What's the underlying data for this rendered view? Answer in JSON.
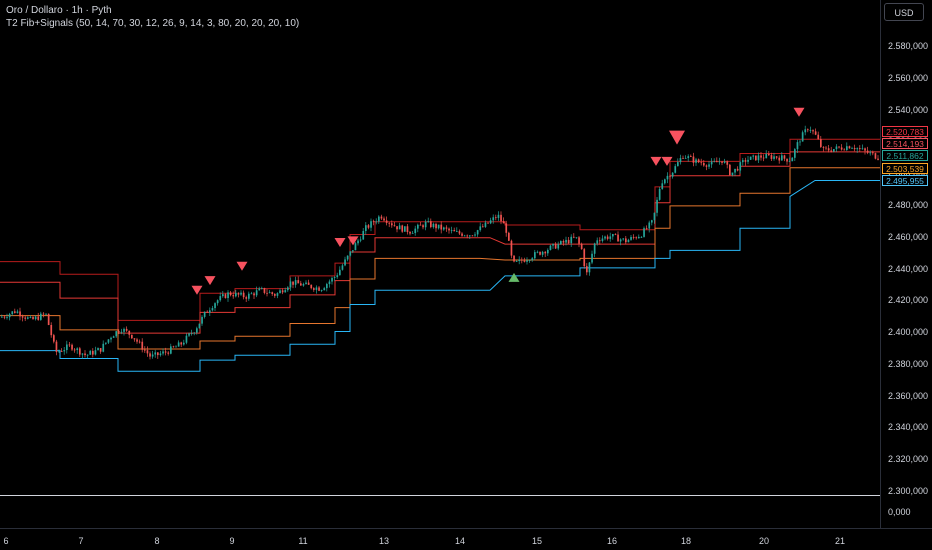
{
  "header": {
    "title": "Oro / Dollaro · 1h · Pyth",
    "indicator": "T2 Fib+Signals (50, 14, 70, 30, 12, 26, 9, 14, 3, 80, 20, 20, 20, 10)"
  },
  "currency_button": "USD",
  "chart_data": {
    "type": "line",
    "title": "",
    "xlabel": "",
    "ylabel": "",
    "x_ticks": [
      "6",
      "7",
      "8",
      "9",
      "11",
      "13",
      "14",
      "15",
      "16",
      "18",
      "20",
      "21"
    ],
    "y_ticks": [
      "2.580,000",
      "2.560,000",
      "2.540,000",
      "2.520,000",
      "2.500,000",
      "2.480,000",
      "2.460,000",
      "2.440,000",
      "2.420,000",
      "2.400,000",
      "2.380,000",
      "2.360,000",
      "2.340,000",
      "2.320,000",
      "2.300,000"
    ],
    "volume_tick": "0,000",
    "ylim": [
      2290,
      2595
    ],
    "price_labels": [
      {
        "text": "2.520,783",
        "value": 2520.78,
        "color": "#f23645"
      },
      {
        "text": "2.514,193",
        "value": 2514.19,
        "color": "#f7525f"
      },
      {
        "text": "2.511,862",
        "value": 2511.86,
        "color": "#26a69a"
      },
      {
        "text": "2.503,539",
        "value": 2503.54,
        "color": "#ffa726"
      },
      {
        "text": "2.495,955",
        "value": 2495.96,
        "color": "#4fc3f7"
      }
    ],
    "series": [
      {
        "color": "#b71c1c",
        "points": [
          [
            0,
            2445
          ],
          [
            60,
            2445
          ],
          [
            60,
            2437
          ],
          [
            118,
            2437
          ],
          [
            118,
            2408
          ],
          [
            200,
            2408
          ],
          [
            200,
            2425
          ],
          [
            235,
            2425
          ],
          [
            235,
            2428
          ],
          [
            290,
            2428
          ],
          [
            290,
            2436
          ],
          [
            335,
            2436
          ],
          [
            335,
            2444
          ],
          [
            350,
            2444
          ],
          [
            350,
            2462
          ],
          [
            375,
            2462
          ],
          [
            375,
            2470
          ],
          [
            505,
            2470
          ],
          [
            505,
            2468
          ],
          [
            580,
            2468
          ],
          [
            580,
            2465
          ],
          [
            655,
            2465
          ],
          [
            655,
            2492
          ],
          [
            670,
            2492
          ],
          [
            670,
            2508
          ],
          [
            740,
            2508
          ],
          [
            740,
            2513
          ],
          [
            790,
            2513
          ],
          [
            790,
            2522
          ],
          [
            880,
            2522
          ]
        ]
      },
      {
        "color": "#e53935",
        "points": [
          [
            0,
            2432
          ],
          [
            60,
            2432
          ],
          [
            60,
            2422
          ],
          [
            118,
            2422
          ],
          [
            118,
            2400
          ],
          [
            200,
            2400
          ],
          [
            200,
            2413
          ],
          [
            235,
            2413
          ],
          [
            235,
            2416
          ],
          [
            290,
            2416
          ],
          [
            290,
            2424
          ],
          [
            335,
            2424
          ],
          [
            335,
            2433
          ],
          [
            350,
            2433
          ],
          [
            350,
            2451
          ],
          [
            375,
            2451
          ],
          [
            375,
            2460
          ],
          [
            490,
            2460
          ],
          [
            505,
            2456
          ],
          [
            580,
            2456
          ],
          [
            580,
            2456
          ],
          [
            655,
            2456
          ],
          [
            655,
            2482
          ],
          [
            670,
            2482
          ],
          [
            670,
            2499
          ],
          [
            740,
            2499
          ],
          [
            740,
            2505
          ],
          [
            790,
            2505
          ],
          [
            790,
            2514
          ],
          [
            880,
            2514
          ]
        ]
      },
      {
        "color": "#e6762e",
        "points": [
          [
            0,
            2411
          ],
          [
            60,
            2411
          ],
          [
            60,
            2402
          ],
          [
            118,
            2402
          ],
          [
            118,
            2390
          ],
          [
            200,
            2390
          ],
          [
            200,
            2395
          ],
          [
            235,
            2395
          ],
          [
            235,
            2398
          ],
          [
            290,
            2398
          ],
          [
            290,
            2406
          ],
          [
            335,
            2406
          ],
          [
            335,
            2416
          ],
          [
            350,
            2416
          ],
          [
            350,
            2434
          ],
          [
            375,
            2434
          ],
          [
            375,
            2447
          ],
          [
            480,
            2447
          ],
          [
            505,
            2446
          ],
          [
            580,
            2446
          ],
          [
            580,
            2447
          ],
          [
            655,
            2447
          ],
          [
            655,
            2466
          ],
          [
            670,
            2466
          ],
          [
            670,
            2480
          ],
          [
            740,
            2480
          ],
          [
            740,
            2488
          ],
          [
            790,
            2488
          ],
          [
            790,
            2504
          ],
          [
            880,
            2504
          ]
        ]
      },
      {
        "color": "#29b6f6",
        "points": [
          [
            0,
            2389
          ],
          [
            60,
            2389
          ],
          [
            60,
            2384
          ],
          [
            118,
            2384
          ],
          [
            118,
            2376
          ],
          [
            200,
            2376
          ],
          [
            200,
            2383
          ],
          [
            235,
            2383
          ],
          [
            235,
            2386
          ],
          [
            290,
            2386
          ],
          [
            290,
            2393
          ],
          [
            335,
            2393
          ],
          [
            335,
            2401
          ],
          [
            350,
            2401
          ],
          [
            350,
            2418
          ],
          [
            375,
            2418
          ],
          [
            375,
            2427
          ],
          [
            490,
            2427
          ],
          [
            505,
            2436
          ],
          [
            580,
            2436
          ],
          [
            580,
            2441
          ],
          [
            655,
            2441
          ],
          [
            655,
            2447
          ],
          [
            670,
            2447
          ],
          [
            670,
            2452
          ],
          [
            740,
            2452
          ],
          [
            740,
            2466
          ],
          [
            790,
            2466
          ],
          [
            790,
            2486
          ],
          [
            815,
            2496
          ],
          [
            880,
            2496
          ]
        ]
      }
    ],
    "price_path": [
      [
        0,
        2410
      ],
      [
        15,
        2414
      ],
      [
        30,
        2408
      ],
      [
        45,
        2412
      ],
      [
        55,
        2388
      ],
      [
        70,
        2392
      ],
      [
        85,
        2386
      ],
      [
        100,
        2390
      ],
      [
        110,
        2398
      ],
      [
        120,
        2403
      ],
      [
        132,
        2398
      ],
      [
        140,
        2392
      ],
      [
        150,
        2385
      ],
      [
        165,
        2388
      ],
      [
        180,
        2393
      ],
      [
        195,
        2403
      ],
      [
        205,
        2413
      ],
      [
        215,
        2420
      ],
      [
        228,
        2425
      ],
      [
        245,
        2423
      ],
      [
        260,
        2427
      ],
      [
        275,
        2424
      ],
      [
        290,
        2432
      ],
      [
        305,
        2430
      ],
      [
        320,
        2428
      ],
      [
        335,
        2436
      ],
      [
        345,
        2446
      ],
      [
        355,
        2456
      ],
      [
        365,
        2466
      ],
      [
        380,
        2474
      ],
      [
        395,
        2467
      ],
      [
        410,
        2464
      ],
      [
        425,
        2469
      ],
      [
        440,
        2466
      ],
      [
        455,
        2463
      ],
      [
        470,
        2462
      ],
      [
        485,
        2468
      ],
      [
        497,
        2474
      ],
      [
        505,
        2466
      ],
      [
        512,
        2443
      ],
      [
        522,
        2446
      ],
      [
        540,
        2451
      ],
      [
        555,
        2455
      ],
      [
        575,
        2460
      ],
      [
        582,
        2451
      ],
      [
        585,
        2435
      ],
      [
        595,
        2459
      ],
      [
        610,
        2461
      ],
      [
        625,
        2458
      ],
      [
        640,
        2462
      ],
      [
        652,
        2470
      ],
      [
        660,
        2495
      ],
      [
        672,
        2502
      ],
      [
        682,
        2512
      ],
      [
        695,
        2508
      ],
      [
        710,
        2506
      ],
      [
        722,
        2509
      ],
      [
        730,
        2500
      ],
      [
        745,
        2509
      ],
      [
        760,
        2511
      ],
      [
        775,
        2511
      ],
      [
        790,
        2509
      ],
      [
        798,
        2521
      ],
      [
        808,
        2530
      ],
      [
        815,
        2524
      ],
      [
        822,
        2515
      ],
      [
        835,
        2516
      ],
      [
        850,
        2518
      ],
      [
        865,
        2514
      ],
      [
        880,
        2510
      ]
    ],
    "signals": [
      {
        "type": "sell",
        "x": 197,
        "value": 2427,
        "size": "small"
      },
      {
        "type": "sell",
        "x": 210,
        "value": 2433,
        "size": "small"
      },
      {
        "type": "sell",
        "x": 242,
        "value": 2442,
        "size": "small"
      },
      {
        "type": "sell",
        "x": 340,
        "value": 2457,
        "size": "small"
      },
      {
        "type": "sell",
        "x": 353,
        "value": 2458,
        "size": "small"
      },
      {
        "type": "buy",
        "x": 514,
        "value": 2435,
        "size": "small"
      },
      {
        "type": "sell",
        "x": 656,
        "value": 2508,
        "size": "small"
      },
      {
        "type": "sell",
        "x": 667,
        "value": 2508,
        "size": "small"
      },
      {
        "type": "sell",
        "x": 677,
        "value": 2523,
        "size": "large"
      },
      {
        "type": "sell",
        "x": 799,
        "value": 2539,
        "size": "small"
      }
    ]
  }
}
